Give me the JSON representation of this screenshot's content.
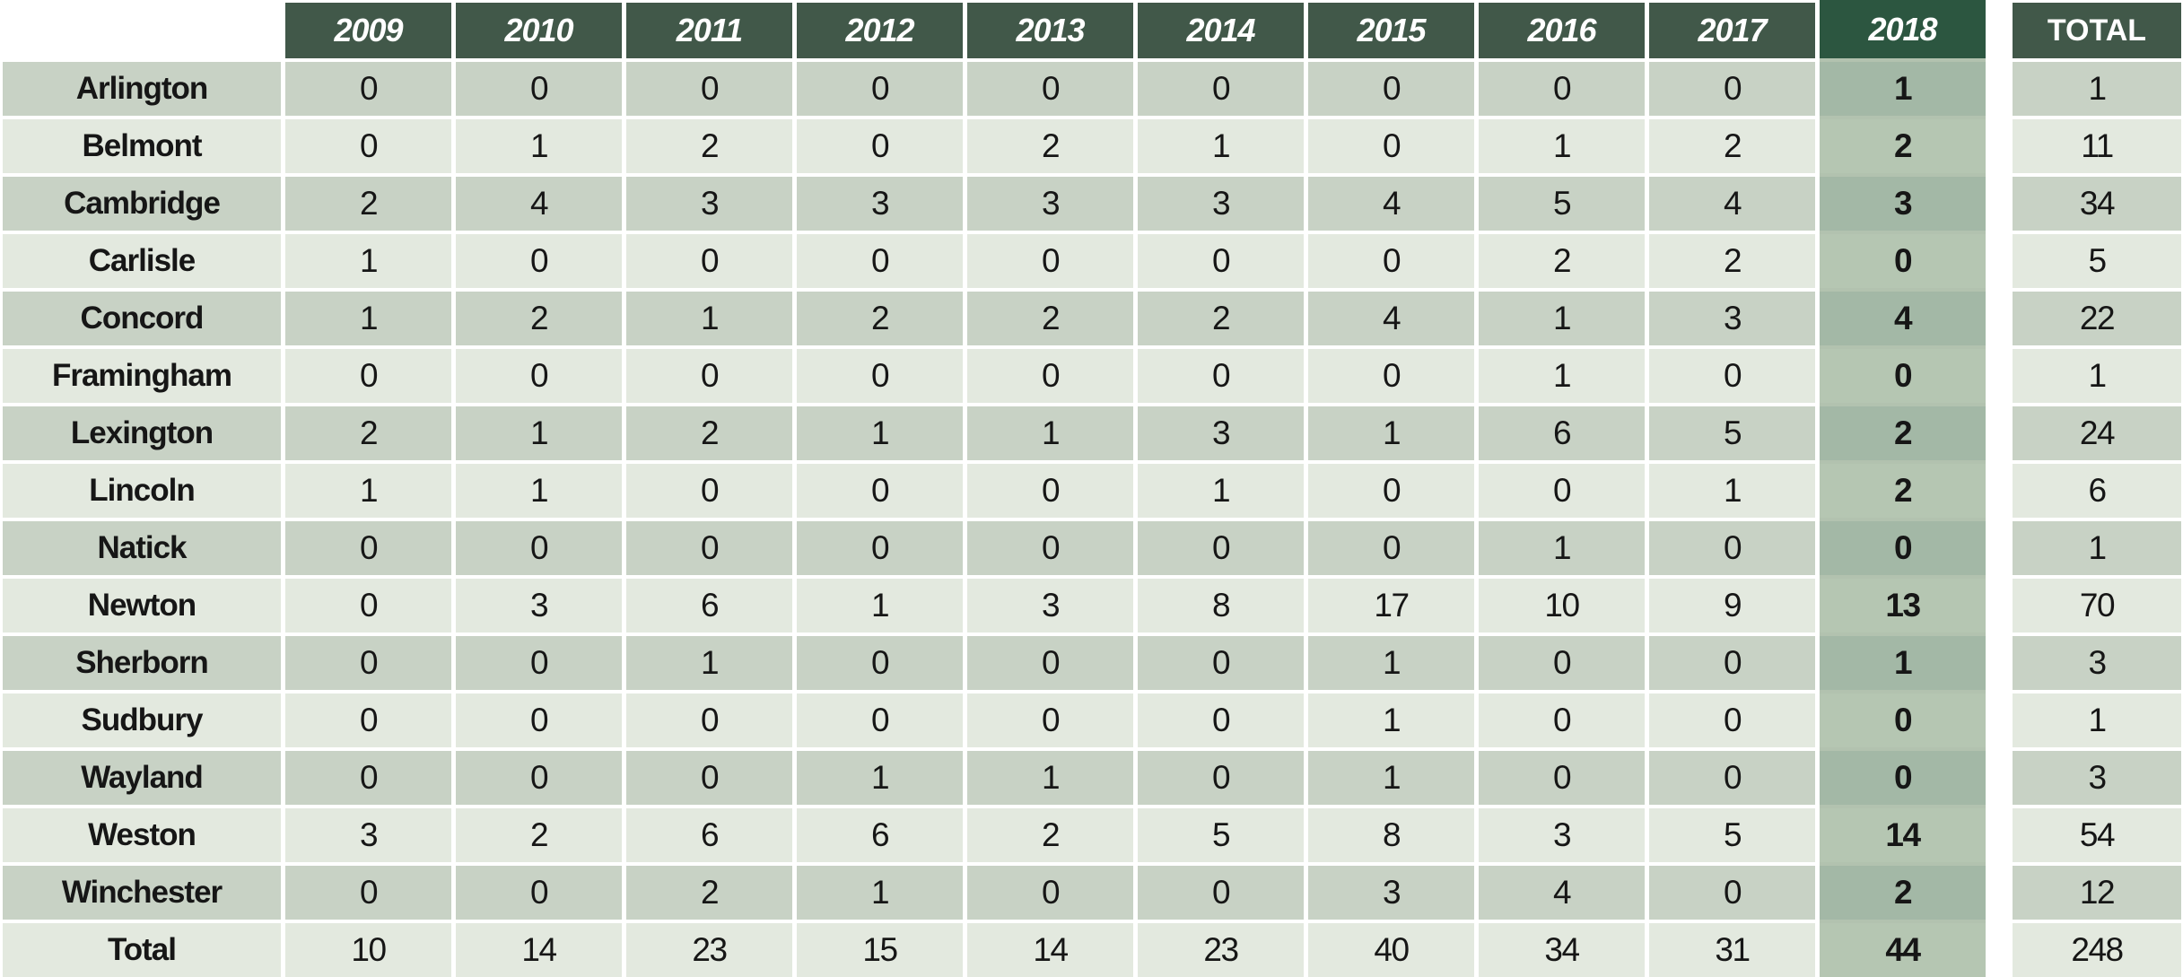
{
  "table_title": "",
  "highlight_column": "2018",
  "colors": {
    "header_green": "#415849",
    "header_green_2018": "#2c5640",
    "row_dark": "#c8d2c5",
    "row_light": "#e3e9df",
    "col2018_dark": "#a3b8a6",
    "col2018_light": "#b5c6b2",
    "gap_tint": "#b2c2af",
    "text": "#161616",
    "header_text": "#ffffff"
  },
  "chart_data": {
    "type": "table",
    "columns": [
      "2009",
      "2010",
      "2011",
      "2012",
      "2013",
      "2014",
      "2015",
      "2016",
      "2017",
      "2018",
      "TOTAL"
    ],
    "highlight_column_index": 9,
    "rows": [
      {
        "label": "Arlington",
        "values": [
          0,
          0,
          0,
          0,
          0,
          0,
          0,
          0,
          0,
          1
        ],
        "total": 1
      },
      {
        "label": "Belmont",
        "values": [
          0,
          1,
          2,
          0,
          2,
          1,
          0,
          1,
          2,
          2
        ],
        "total": 11
      },
      {
        "label": "Cambridge",
        "values": [
          2,
          4,
          3,
          3,
          3,
          3,
          4,
          5,
          4,
          3
        ],
        "total": 34
      },
      {
        "label": "Carlisle",
        "values": [
          1,
          0,
          0,
          0,
          0,
          0,
          0,
          2,
          2,
          0
        ],
        "total": 5
      },
      {
        "label": "Concord",
        "values": [
          1,
          2,
          1,
          2,
          2,
          2,
          4,
          1,
          3,
          4
        ],
        "total": 22
      },
      {
        "label": "Framingham",
        "values": [
          0,
          0,
          0,
          0,
          0,
          0,
          0,
          1,
          0,
          0
        ],
        "total": 1
      },
      {
        "label": "Lexington",
        "values": [
          2,
          1,
          2,
          1,
          1,
          3,
          1,
          6,
          5,
          2
        ],
        "total": 24
      },
      {
        "label": "Lincoln",
        "values": [
          1,
          1,
          0,
          0,
          0,
          1,
          0,
          0,
          1,
          2
        ],
        "total": 6
      },
      {
        "label": "Natick",
        "values": [
          0,
          0,
          0,
          0,
          0,
          0,
          0,
          1,
          0,
          0
        ],
        "total": 1
      },
      {
        "label": "Newton",
        "values": [
          0,
          3,
          6,
          1,
          3,
          8,
          17,
          10,
          9,
          13
        ],
        "total": 70
      },
      {
        "label": "Sherborn",
        "values": [
          0,
          0,
          1,
          0,
          0,
          0,
          1,
          0,
          0,
          1
        ],
        "total": 3
      },
      {
        "label": "Sudbury",
        "values": [
          0,
          0,
          0,
          0,
          0,
          0,
          1,
          0,
          0,
          0
        ],
        "total": 1
      },
      {
        "label": "Wayland",
        "values": [
          0,
          0,
          0,
          1,
          1,
          0,
          1,
          0,
          0,
          0
        ],
        "total": 3
      },
      {
        "label": "Weston",
        "values": [
          3,
          2,
          6,
          6,
          2,
          5,
          8,
          3,
          5,
          14
        ],
        "total": 54
      },
      {
        "label": "Winchester",
        "values": [
          0,
          0,
          2,
          1,
          0,
          0,
          3,
          4,
          0,
          2
        ],
        "total": 12
      },
      {
        "label": "Total",
        "values": [
          10,
          14,
          23,
          15,
          14,
          23,
          40,
          34,
          31,
          44
        ],
        "total": 248
      }
    ]
  }
}
